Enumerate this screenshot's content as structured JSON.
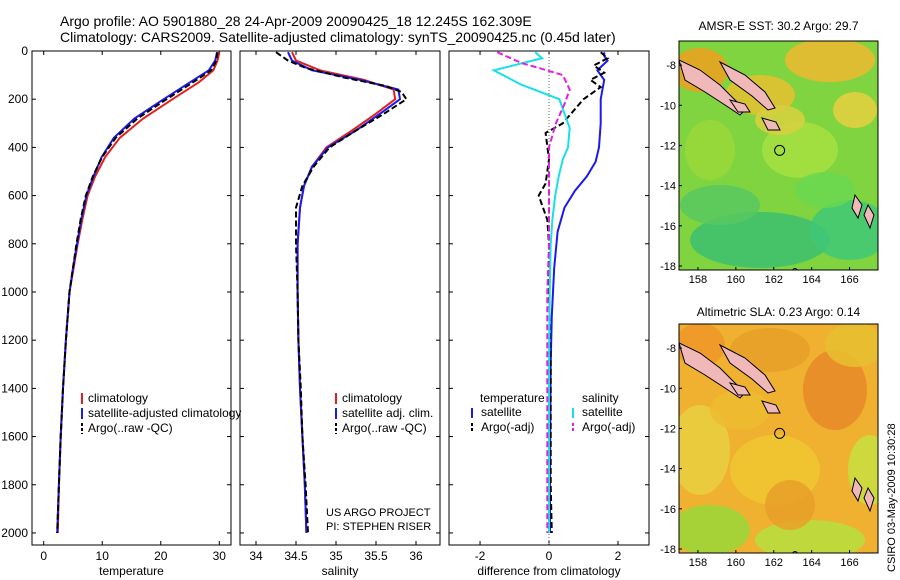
{
  "title": {
    "line1": "Argo profile: AO 5901880_28 24-Apr-2009 20090425_18 12.245S 162.309E",
    "line2": "Climatology: CARS2009. Satellite-adjusted climatology: synTS_20090425.nc (0.45d later)"
  },
  "credit": {
    "line1": "US ARGO PROJECT",
    "line2": "PI: STEPHEN RISER"
  },
  "footer": "CSIRO 03-May-2009 10:30:28",
  "colors": {
    "climatology": "#e02020",
    "satellite": "#1a1aee",
    "argo": "#000000",
    "diff_temp_sat": "#1a1aee",
    "diff_sal_sat": "#18e0e8",
    "diff_sal_argo": "#e020e0"
  },
  "chart_data": [
    {
      "type": "line",
      "id": "temperature-profile",
      "xlabel": "temperature",
      "ylabel": "",
      "xlim": [
        -2,
        32
      ],
      "ylim": [
        2050,
        0
      ],
      "xticks": [
        0,
        10,
        20,
        30
      ],
      "yticks": [
        0,
        200,
        400,
        600,
        800,
        1000,
        1200,
        1400,
        1600,
        1800,
        2000
      ],
      "legend": [
        "climatology",
        "satellite-adjusted climatology",
        "Argo(..raw -QC)"
      ],
      "series": [
        {
          "name": "climatology",
          "style": "solid",
          "color_key": "climatology",
          "x": [
            30.0,
            29.7,
            29.0,
            26.5,
            22.0,
            17.0,
            13.0,
            10.5,
            8.8,
            7.5,
            6.6,
            5.8,
            5.1,
            4.4,
            3.8,
            3.3,
            2.9,
            2.6,
            2.4
          ],
          "y": [
            5,
            40,
            80,
            130,
            200,
            280,
            360,
            440,
            520,
            600,
            700,
            800,
            900,
            1000,
            1200,
            1400,
            1600,
            1800,
            2000
          ]
        },
        {
          "name": "satellite-adjusted climatology",
          "style": "solid",
          "color_key": "satellite",
          "x": [
            29.6,
            29.3,
            28.2,
            25.0,
            20.5,
            15.5,
            12.0,
            9.9,
            8.5,
            7.3,
            6.4,
            5.7,
            5.0,
            4.4,
            3.8,
            3.3,
            2.9,
            2.6,
            2.3
          ],
          "y": [
            5,
            40,
            80,
            130,
            200,
            280,
            360,
            440,
            520,
            600,
            700,
            800,
            900,
            1000,
            1200,
            1400,
            1600,
            1800,
            2000
          ]
        },
        {
          "name": "Argo(..raw -QC)",
          "style": "dashed",
          "color_key": "argo",
          "x": [
            29.7,
            29.5,
            28.6,
            25.5,
            21.0,
            16.0,
            12.3,
            10.0,
            8.4,
            7.2,
            6.3,
            5.6,
            5.0,
            4.4,
            3.8,
            3.3,
            2.9,
            2.6,
            2.3
          ],
          "y": [
            5,
            40,
            80,
            130,
            200,
            280,
            360,
            440,
            520,
            600,
            700,
            800,
            900,
            1000,
            1200,
            1400,
            1600,
            1800,
            2000
          ]
        }
      ]
    },
    {
      "type": "line",
      "id": "salinity-profile",
      "xlabel": "salinity",
      "xlim": [
        33.8,
        36.3
      ],
      "ylim": [
        2050,
        0
      ],
      "xticks": [
        34,
        34.5,
        35,
        35.5,
        36
      ],
      "legend": [
        "climatology",
        "satellite adj. clim.",
        "Argo(..raw -QC)"
      ],
      "series": [
        {
          "name": "climatology",
          "style": "solid",
          "color_key": "climatology",
          "x": [
            34.45,
            34.5,
            34.8,
            35.35,
            35.72,
            35.74,
            35.5,
            35.2,
            34.88,
            34.7,
            34.6,
            34.55,
            34.52,
            34.52,
            34.53,
            34.55,
            34.58,
            34.61,
            34.63
          ],
          "y": [
            5,
            40,
            80,
            120,
            160,
            200,
            260,
            330,
            400,
            480,
            560,
            650,
            800,
            1000,
            1200,
            1400,
            1600,
            1800,
            2000
          ]
        },
        {
          "name": "satellite adj. clim.",
          "style": "solid",
          "color_key": "satellite",
          "x": [
            34.4,
            34.45,
            34.7,
            35.3,
            35.78,
            35.8,
            35.55,
            35.25,
            34.9,
            34.7,
            34.6,
            34.55,
            34.52,
            34.52,
            34.53,
            34.55,
            34.58,
            34.61,
            34.63
          ],
          "y": [
            5,
            40,
            80,
            120,
            160,
            200,
            260,
            330,
            400,
            480,
            560,
            650,
            800,
            1000,
            1200,
            1400,
            1600,
            1800,
            2000
          ]
        },
        {
          "name": "Argo(..raw -QC)",
          "style": "dashed",
          "color_key": "argo",
          "x": [
            34.25,
            34.4,
            34.62,
            35.1,
            35.62,
            35.82,
            35.88,
            35.6,
            35.25,
            34.92,
            34.72,
            34.58,
            34.5,
            34.5,
            34.52,
            34.53,
            34.56,
            34.58,
            34.62,
            34.65
          ],
          "y": [
            5,
            40,
            70,
            110,
            145,
            170,
            200,
            260,
            330,
            400,
            480,
            560,
            650,
            800,
            1000,
            1200,
            1400,
            1600,
            1800,
            2000
          ]
        }
      ]
    },
    {
      "type": "line",
      "id": "difference-profile",
      "xlabel": "difference from climatology",
      "xlim": [
        -2.9,
        2.9
      ],
      "ylim": [
        2050,
        0
      ],
      "xticks": [
        -2,
        0,
        2
      ],
      "legend": [
        "temperature",
        "satellite",
        "Argo(-adj)",
        "salinity",
        "satellite",
        "Argo(-adj)"
      ],
      "series": [
        {
          "name": "temperature satellite",
          "style": "solid",
          "color_key": "diff_temp_sat",
          "x": [
            1.6,
            1.6,
            1.7,
            1.4,
            1.6,
            1.5,
            1.5,
            1.45,
            1.35,
            1.1,
            0.75,
            0.45,
            0.25,
            0.15,
            0.08,
            0.05,
            0.04,
            0.03,
            0.03
          ],
          "y": [
            5,
            20,
            40,
            80,
            120,
            200,
            300,
            400,
            460,
            520,
            580,
            650,
            750,
            900,
            1100,
            1300,
            1500,
            1800,
            2000
          ]
        },
        {
          "name": "temperature Argo(-adj)",
          "style": "dashed",
          "color_key": "argo",
          "x": [
            1.5,
            1.7,
            1.3,
            1.6,
            1.2,
            1.5,
            1.0,
            0.4,
            -0.1,
            0.0,
            -0.1,
            -0.3,
            -0.05,
            0.0,
            0.0,
            0.05,
            0.05,
            0.05,
            0.08
          ],
          "y": [
            5,
            30,
            60,
            90,
            120,
            150,
            200,
            300,
            340,
            450,
            550,
            600,
            700,
            800,
            1000,
            1300,
            1500,
            1800,
            2000
          ]
        },
        {
          "name": "salinity satellite",
          "style": "solid",
          "color_key": "diff_sal_sat",
          "x": [
            -0.4,
            -0.2,
            -1.6,
            -0.8,
            0.3,
            0.6,
            0.55,
            0.4,
            0.28,
            0.18,
            0.1,
            0.05,
            0.02,
            0.0,
            0.0,
            0.0,
            0.0
          ],
          "y": [
            5,
            30,
            80,
            140,
            200,
            320,
            400,
            450,
            520,
            600,
            700,
            800,
            1000,
            1300,
            1500,
            1800,
            2000
          ]
        },
        {
          "name": "salinity Argo(-adj)",
          "style": "dashed",
          "color_key": "diff_sal_argo",
          "x": [
            -1.5,
            -0.8,
            -0.3,
            0.4,
            0.6,
            0.45,
            0.2,
            0.0,
            0.0,
            0.0,
            -0.05,
            -0.05,
            -0.05,
            -0.05
          ],
          "y": [
            5,
            50,
            70,
            100,
            160,
            220,
            300,
            400,
            600,
            800,
            1000,
            1300,
            1600,
            2000
          ]
        }
      ]
    },
    {
      "type": "heatmap",
      "id": "sst-map",
      "title": "AMSR-E SST: 30.2 Argo: 29.7",
      "xlim": [
        157,
        167.5
      ],
      "ylim": [
        -18.2,
        -6.8
      ],
      "xticks": [
        158,
        160,
        162,
        164,
        166
      ],
      "yticks": [
        -8,
        -10,
        -12,
        -14,
        -16,
        -18
      ],
      "argo_position": {
        "lon": 162.309,
        "lat": -12.245
      }
    },
    {
      "type": "heatmap",
      "id": "sla-map",
      "title": "Altimetric SLA: 0.23 Argo: 0.14",
      "xlim": [
        157,
        167.5
      ],
      "ylim": [
        -18.2,
        -6.8
      ],
      "xticks": [
        158,
        160,
        162,
        164,
        166
      ],
      "yticks": [
        -8,
        -10,
        -12,
        -14,
        -16,
        -18
      ],
      "argo_position": {
        "lon": 162.309,
        "lat": -12.245
      }
    }
  ]
}
